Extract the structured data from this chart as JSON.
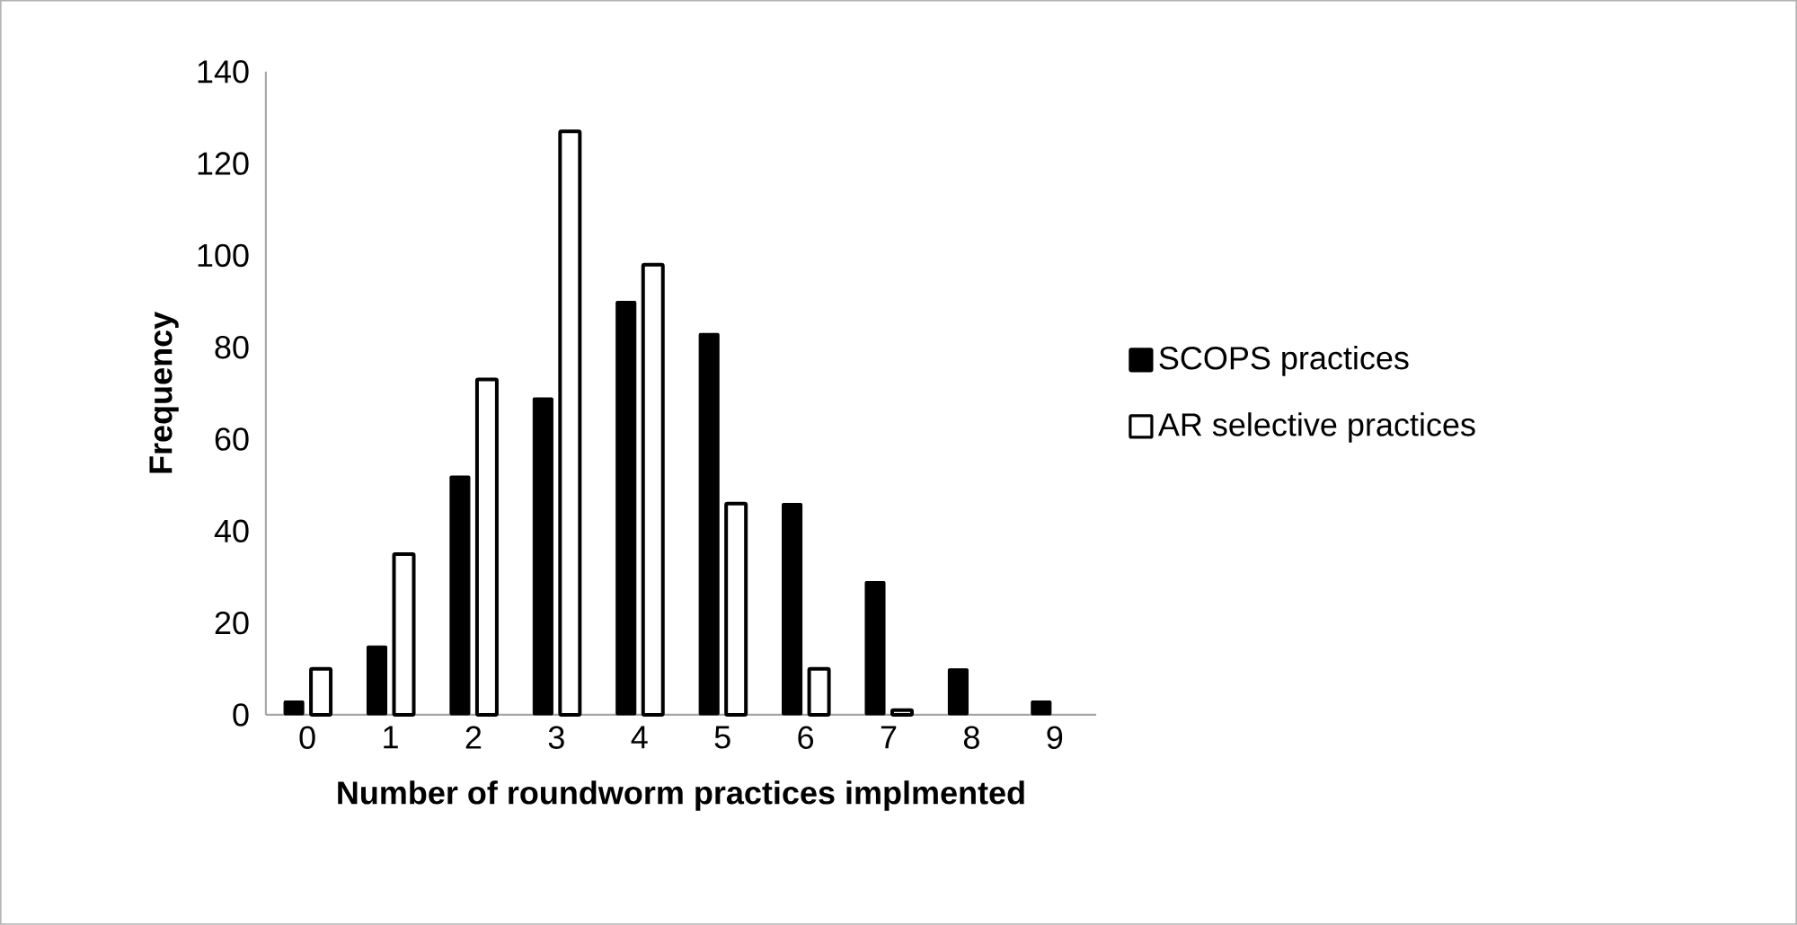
{
  "chart_data": {
    "type": "bar",
    "xlabel": "Number of roundworm practices implmented",
    "ylabel": "Frequency",
    "categories": [
      "0",
      "1",
      "2",
      "3",
      "4",
      "5",
      "6",
      "7",
      "8",
      "9"
    ],
    "series": [
      {
        "name": "SCOPS practices",
        "color": "#000000",
        "values": [
          3,
          15,
          52,
          69,
          90,
          83,
          46,
          29,
          10,
          3
        ]
      },
      {
        "name": "AR selective practices",
        "color": "#ffffff",
        "values": [
          10,
          35,
          73,
          127,
          98,
          46,
          10,
          1,
          null,
          null
        ]
      }
    ],
    "ylim": [
      0,
      140
    ],
    "yticks": [
      0,
      20,
      40,
      60,
      80,
      100,
      120,
      140
    ],
    "grid": false,
    "legend": "right"
  }
}
